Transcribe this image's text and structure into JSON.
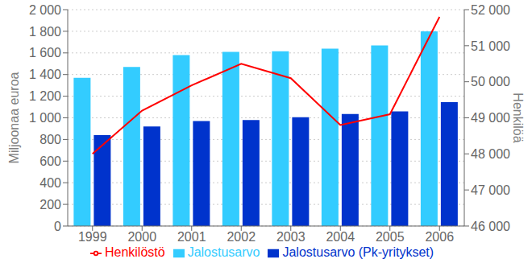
{
  "chart_data": {
    "type": "bar",
    "categories": [
      "1999",
      "2000",
      "2001",
      "2002",
      "2003",
      "2004",
      "2005",
      "2006"
    ],
    "series": [
      {
        "name": "Jalostusarvo",
        "color": "#33CCFF",
        "values": [
          1370,
          1470,
          1580,
          1610,
          1615,
          1640,
          1670,
          1800
        ]
      },
      {
        "name": "Jalostusarvo (Pk-yritykset)",
        "color": "#0033CC",
        "values": [
          840,
          920,
          970,
          980,
          1005,
          1035,
          1060,
          1145
        ]
      },
      {
        "name": "Henkilöstö",
        "color": "#FF0000",
        "type": "line",
        "axis": "y2",
        "values": [
          48000,
          49200,
          49900,
          50500,
          50100,
          48800,
          49100,
          51800
        ]
      }
    ],
    "ylabel": "Miljoonaa euroa",
    "y2label": "Henkilöä",
    "ylim": [
      0,
      2000
    ],
    "yticks": [
      0,
      200,
      400,
      600,
      800,
      {
        "value": 1000,
        "label": "1 000"
      },
      {
        "value": 1200,
        "label": "1 200"
      },
      {
        "value": 1400,
        "label": "1 400"
      },
      {
        "value": 1600,
        "label": "1 600"
      },
      {
        "value": 1800,
        "label": "1 800"
      },
      {
        "value": 2000,
        "label": "2 000"
      }
    ],
    "y2lim": [
      46000,
      52000
    ],
    "y2ticks": [
      {
        "value": 46000,
        "label": "46 000"
      },
      {
        "value": 47000,
        "label": "47 000"
      },
      {
        "value": 48000,
        "label": "48 000"
      },
      {
        "value": 49000,
        "label": "49 000"
      },
      {
        "value": 50000,
        "label": "50 000"
      },
      {
        "value": 51000,
        "label": "51 000"
      },
      {
        "value": 52000,
        "label": "52 000"
      }
    ],
    "grid": true,
    "legend": "bottom"
  }
}
